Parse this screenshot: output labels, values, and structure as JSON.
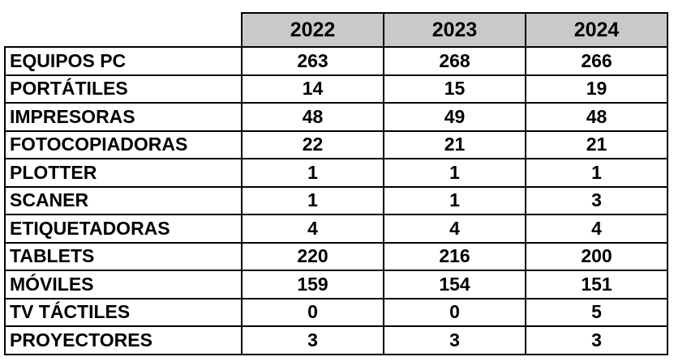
{
  "table": {
    "columns": [
      "2022",
      "2023",
      "2024"
    ],
    "rows": [
      {
        "label": "EQUIPOS PC",
        "values": [
          263,
          268,
          266
        ]
      },
      {
        "label": "PORTÁTILES",
        "values": [
          14,
          15,
          19
        ]
      },
      {
        "label": "IMPRESORAS",
        "values": [
          48,
          49,
          48
        ]
      },
      {
        "label": "FOTOCOPIADORAS",
        "values": [
          22,
          21,
          21
        ]
      },
      {
        "label": "PLOTTER",
        "values": [
          1,
          1,
          1
        ]
      },
      {
        "label": "SCANER",
        "values": [
          1,
          1,
          3
        ]
      },
      {
        "label": "ETIQUETADORAS",
        "values": [
          4,
          4,
          4
        ]
      },
      {
        "label": "TABLETS",
        "values": [
          220,
          216,
          200
        ]
      },
      {
        "label": "MÓVILES",
        "values": [
          159,
          154,
          151
        ]
      },
      {
        "label": "TV TÁCTILES",
        "values": [
          0,
          0,
          5
        ]
      },
      {
        "label": "PROYECTORES",
        "values": [
          3,
          3,
          3
        ]
      }
    ]
  }
}
